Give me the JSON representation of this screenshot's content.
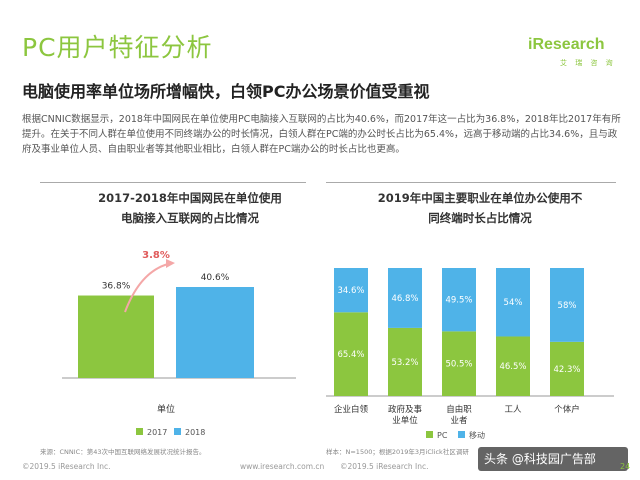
{
  "header": {
    "title": "PC用户特征分析",
    "logo": "iResearch",
    "logo_sub": "艾 瑞 咨 询",
    "subtitle": "电脑使用率单位场所增幅快，白领PC办公场景价值受重视"
  },
  "body_text": "根据CNNIC数据显示，2018年中国网民在单位使用PC电脑接入互联网的占比为40.6%，而2017年这一占比为36.8%，2018年比2017年有所提升。在关于不同人群在单位使用不同终端办公的时长情况，白领人群在PC端的办公时长占比为65.4%，远高于移动端的占比34.6%，且与政府及事业单位人员、自由职业者等其他职业相比，白领人群在PC端办公的时长占比也更高。",
  "chart_data": [
    {
      "type": "bar",
      "title_line1": "2017-2018年中国网民在单位使用",
      "title_line2": "电脑接入互联网的占比情况",
      "categories": [
        "单位"
      ],
      "series": [
        {
          "name": "2017",
          "values": [
            36.8
          ],
          "label": "36.8%",
          "color": "#8cc63f"
        },
        {
          "name": "2018",
          "values": [
            40.6
          ],
          "label": "40.6%",
          "color": "#4fb3e8"
        }
      ],
      "annotation": "3.8%",
      "ylim": [
        0,
        45
      ],
      "legend": "bottom",
      "source": "来源：CNNIC：第43次中国互联网络发展状况统计报告。"
    },
    {
      "type": "bar",
      "stacked": true,
      "title_line1": "2019年中国主要职业在单位办公使用不",
      "title_line2": "同终端时长占比情况",
      "categories": [
        "企业白领",
        "政府及事\n业单位",
        "自由职\n业者",
        "工人",
        "个体户"
      ],
      "series": [
        {
          "name": "PC",
          "values": [
            65.4,
            53.2,
            50.5,
            46.5,
            42.3
          ],
          "labels": [
            "65.4%",
            "53.2%",
            "50.5%",
            "46.5%",
            "42.3%"
          ],
          "color": "#8cc63f"
        },
        {
          "name": "移动",
          "values": [
            34.6,
            46.8,
            49.5,
            54,
            58
          ],
          "labels": [
            "34.6%",
            "46.8%",
            "49.5%",
            "54%",
            "58%"
          ],
          "color": "#4fb3e8"
        }
      ],
      "ylim": [
        0,
        100
      ],
      "legend": "bottom",
      "source": "样本：N=1500；根据2019年3月iClick社区调研"
    }
  ],
  "footer": {
    "left": "©2019.5 iResearch Inc.",
    "left_url": "www.iresearch.com.cn",
    "right": "©2019.5 iResearch Inc.",
    "right_url": "www.iresearch.com.cn",
    "watermark": "头条 @科技园广告部",
    "page": "24"
  }
}
